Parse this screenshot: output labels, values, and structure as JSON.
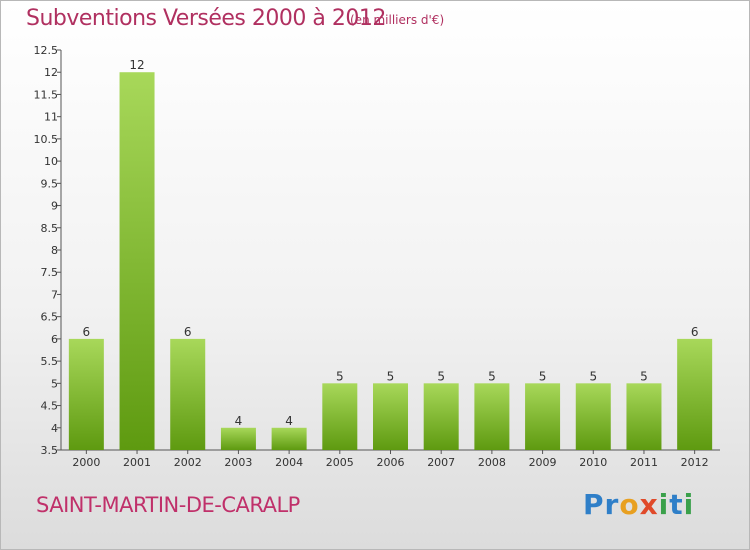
{
  "header": {
    "title": "Subventions Versées 2000 à 2012",
    "unit": "(en milliers d'€)"
  },
  "footer": {
    "location": "SAINT-MARTIN-DE-CARALP",
    "brand": "Proxiti"
  },
  "colors": {
    "title": "#b03060",
    "bar_light": "#a8d85a",
    "bar_dark": "#5e9a10",
    "axis": "#555555"
  },
  "chart_data": {
    "type": "bar",
    "title": "Subventions Versées 2000 à 2012",
    "xlabel": "",
    "ylabel": "",
    "categories": [
      "2000",
      "2001",
      "2002",
      "2003",
      "2004",
      "2005",
      "2006",
      "2007",
      "2008",
      "2009",
      "2010",
      "2011",
      "2012"
    ],
    "values": [
      6,
      12,
      6,
      4,
      4,
      5,
      5,
      5,
      5,
      5,
      5,
      5,
      6
    ],
    "ylim": [
      3.5,
      12.5
    ],
    "yticks": [
      3.5,
      4,
      4.5,
      5,
      5.5,
      6,
      6.5,
      7,
      7.5,
      8,
      8.5,
      9,
      9.5,
      10,
      10.5,
      11,
      11.5,
      12,
      12.5
    ],
    "grid": false,
    "legend": "none"
  }
}
